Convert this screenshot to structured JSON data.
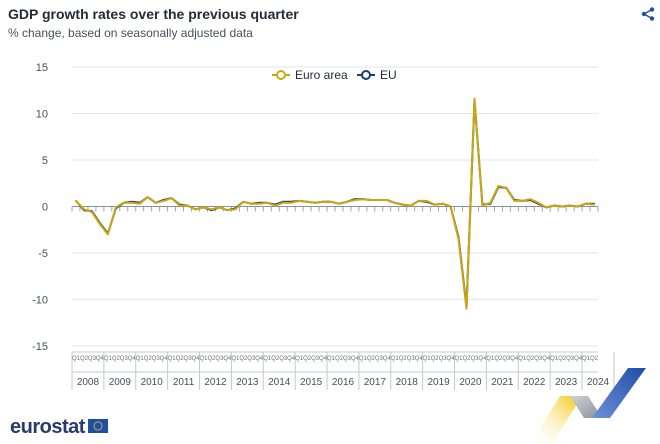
{
  "header": {
    "title": "GDP growth rates over the previous quarter",
    "subtitle": "% change, based on seasonally adjusted data"
  },
  "brand": {
    "name": "eurostat"
  },
  "icons": {
    "share": "share-icon",
    "flag": "eu-flag-icon"
  },
  "chart_data": {
    "type": "line",
    "title": "GDP growth rates over the previous quarter",
    "subtitle": "% change, based on seasonally adjusted data",
    "xlabel": "",
    "ylabel": "",
    "ylim": [
      -15,
      15
    ],
    "y_ticks": [
      15,
      10,
      5,
      0,
      -5,
      -10,
      -15
    ],
    "grid": true,
    "legend_placement": "top-center",
    "quarter_labels": [
      "Q1",
      "Q2",
      "Q3",
      "Q4"
    ],
    "years": [
      "2008",
      "2009",
      "2010",
      "2011",
      "2012",
      "2013",
      "2014",
      "2015",
      "2016",
      "2017",
      "2018",
      "2019",
      "2020",
      "2021",
      "2022",
      "2023",
      "2024"
    ],
    "series": [
      {
        "name": "Euro area",
        "color": "#c9a80f",
        "values": [
          0.6,
          -0.3,
          -0.6,
          -1.9,
          -3.0,
          -0.1,
          0.4,
          0.4,
          0.3,
          1.0,
          0.4,
          0.6,
          0.9,
          0.1,
          0.1,
          -0.3,
          -0.1,
          -0.3,
          -0.1,
          -0.4,
          -0.3,
          0.5,
          0.3,
          0.3,
          0.4,
          0.1,
          0.4,
          0.4,
          0.6,
          0.5,
          0.4,
          0.5,
          0.5,
          0.3,
          0.5,
          0.7,
          0.8,
          0.7,
          0.7,
          0.7,
          0.4,
          0.2,
          0.1,
          0.6,
          0.6,
          0.2,
          0.3,
          0.0,
          -3.5,
          -11.0,
          11.6,
          0.1,
          0.4,
          2.2,
          2.0,
          0.6,
          0.6,
          0.8,
          0.4,
          -0.1,
          0.1,
          0.0,
          0.1,
          0.0,
          0.3,
          0.2
        ]
      },
      {
        "name": "EU",
        "color": "#1f3b73",
        "values": [
          0.6,
          -0.4,
          -0.5,
          -1.8,
          -2.9,
          -0.2,
          0.4,
          0.5,
          0.4,
          1.0,
          0.4,
          0.7,
          0.9,
          0.2,
          0.1,
          -0.3,
          -0.1,
          -0.4,
          -0.1,
          -0.4,
          -0.2,
          0.5,
          0.3,
          0.4,
          0.4,
          0.2,
          0.5,
          0.5,
          0.6,
          0.5,
          0.4,
          0.5,
          0.5,
          0.3,
          0.5,
          0.8,
          0.8,
          0.7,
          0.7,
          0.7,
          0.4,
          0.2,
          0.1,
          0.6,
          0.5,
          0.2,
          0.3,
          0.0,
          -3.3,
          -10.8,
          11.4,
          0.2,
          0.3,
          2.1,
          2.0,
          0.7,
          0.6,
          0.7,
          0.3,
          -0.1,
          0.1,
          0.0,
          0.1,
          0.0,
          0.3,
          0.3
        ]
      }
    ]
  }
}
